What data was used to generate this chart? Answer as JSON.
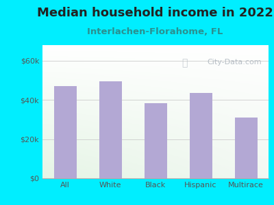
{
  "title": "Median household income in 2022",
  "subtitle": "Interlachen-Florahome, FL",
  "categories": [
    "All",
    "White",
    "Black",
    "Hispanic",
    "Multirace"
  ],
  "values": [
    47000,
    49500,
    38500,
    43500,
    31000
  ],
  "bar_color": "#b3a8d4",
  "background_outer": "#00eeff",
  "background_inner_top_left": "#dff0e8",
  "background_inner_bottom_right": "#ffffff",
  "yticks": [
    0,
    20000,
    40000,
    60000
  ],
  "ytick_labels": [
    "$0",
    "$20k",
    "$40k",
    "$60k"
  ],
  "ylim": [
    0,
    68000
  ],
  "title_fontsize": 13,
  "subtitle_fontsize": 9.5,
  "tick_fontsize": 8,
  "watermark": "City-Data.com",
  "title_color": "#222222",
  "subtitle_color": "#2a9090",
  "tick_color": "#555555",
  "grid_color": "#cccccc"
}
